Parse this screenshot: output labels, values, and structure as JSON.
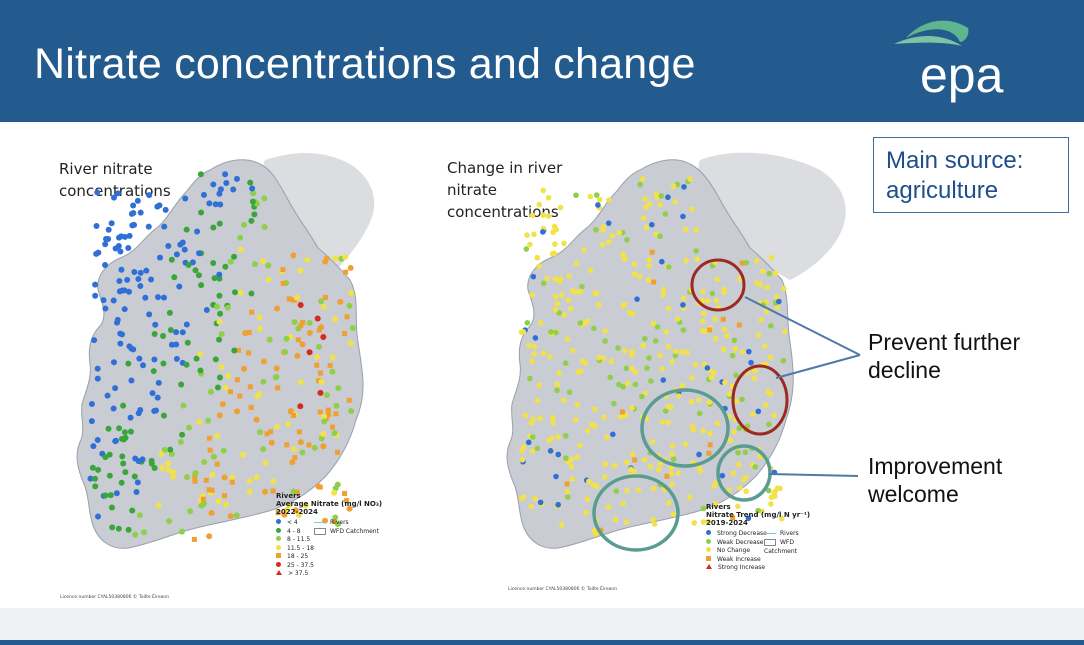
{
  "header": {
    "title": "Nitrate concentrations and change",
    "logo_text": "epa"
  },
  "left_map": {
    "label_line1": "River nitrate",
    "label_line2": "concentrations",
    "legend": {
      "title_line1": "Rivers",
      "title_line2": "Average Nitrate (mg/l NO₃)",
      "title_line3": "2022-2024",
      "classes": [
        "< 4",
        "4 - 8",
        "8 - 11.5",
        "11.5 - 18",
        "18 - 25",
        "25 - 37.5",
        "> 37.5"
      ],
      "rivers_label": "Rivers",
      "catchment_label": "WFD Catchment"
    },
    "license": "Licence number CYAL50380806 © Tailte Éireann"
  },
  "right_map": {
    "label_line1": "Change in river",
    "label_line2": "nitrate",
    "label_line3": "concentrations",
    "legend": {
      "title_line1": "Rivers",
      "title_line2": "Nitrate Trend (mg/l N yr⁻¹)",
      "title_line3": "2019-2024",
      "classes": [
        "Strong Decrease",
        "Weak Decrease",
        "No Change",
        "Weak Increase",
        "Strong Increase"
      ],
      "rivers_label": "Rivers",
      "catchment_label": "WFD Catchment"
    },
    "license": "Licence number CYAL50380806 © Tailte Éireann"
  },
  "source_box": {
    "line1": "Main source:",
    "line2": "agriculture"
  },
  "annotations": {
    "prevent_line1": "Prevent further",
    "prevent_line2": "decline",
    "improve_line1": "Improvement",
    "improve_line2": "welcome"
  },
  "colors": {
    "header_blue": "#245b8f",
    "strong_low": "#2f6fd6",
    "light_green": "#8fcf4a",
    "green": "#3aa63a",
    "yellow": "#f2e24a",
    "orange": "#f0a030",
    "red": "#d62a1e",
    "circle_red": "#9b2a22",
    "circle_teal": "#5a9c92"
  }
}
